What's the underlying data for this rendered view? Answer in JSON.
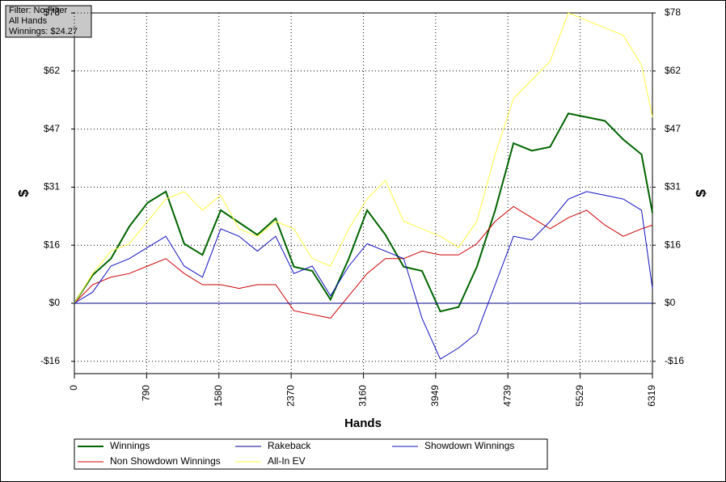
{
  "chart_data": {
    "type": "line",
    "info": [
      "Filter: No Filter",
      "All Hands",
      "Winnings: $24.27"
    ],
    "xlabel": "Hands",
    "ylabel": "$",
    "y2label": "$",
    "x": [
      0,
      200,
      400,
      600,
      800,
      1000,
      1200,
      1400,
      1600,
      1800,
      2000,
      2200,
      2400,
      2600,
      2800,
      3000,
      3200,
      3400,
      3600,
      3800,
      4000,
      4200,
      4400,
      4600,
      4800,
      5000,
      5200,
      5400,
      5600,
      5800,
      6000,
      6200,
      6319
    ],
    "xlim": [
      0,
      6319
    ],
    "xticks": [
      0,
      790,
      1580,
      2370,
      3160,
      3949,
      4739,
      5529,
      6319
    ],
    "ylim": [
      -18.9,
      78
    ],
    "yticks": [
      {
        "value": -15.6,
        "label": "-$16"
      },
      {
        "value": 0,
        "label": "$0"
      },
      {
        "value": 15.6,
        "label": "$16"
      },
      {
        "value": 31.2,
        "label": "$31"
      },
      {
        "value": 46.8,
        "label": "$47"
      },
      {
        "value": 62.4,
        "label": "$62"
      },
      {
        "value": 78,
        "label": "$78"
      }
    ],
    "grid": true,
    "series": [
      {
        "name": "Winnings",
        "color": "#006400",
        "values": [
          0,
          7.6,
          12,
          20.6,
          27,
          30,
          16,
          13,
          25,
          21.7,
          18.4,
          22.8,
          9.8,
          8.7,
          1,
          12,
          25,
          18.4,
          9.8,
          8.7,
          -2.2,
          -1,
          9.8,
          25,
          43,
          41,
          42,
          51,
          50,
          49,
          44,
          40,
          24.27
        ]
      },
      {
        "name": "Non Showdown Winnings",
        "color": "#cc0000",
        "values": [
          0,
          5,
          7,
          8,
          10,
          12,
          8,
          5,
          5,
          4,
          5,
          5,
          -2,
          -3,
          -4,
          2,
          8,
          12,
          12,
          14,
          13,
          13,
          16,
          22,
          26,
          23,
          20,
          23,
          25,
          21,
          18,
          20,
          21
        ]
      },
      {
        "name": "Rakeback",
        "color": "#00008b",
        "values": [
          0,
          0,
          0,
          0,
          0,
          0,
          0,
          0,
          0,
          0,
          0,
          0,
          0,
          0,
          0,
          0,
          0,
          0,
          0,
          0,
          0,
          0,
          0,
          0,
          0,
          0,
          0,
          0,
          0,
          0,
          0,
          0,
          0
        ]
      },
      {
        "name": "All-In EV",
        "color": "#ffff40",
        "values": [
          0,
          8,
          14,
          16,
          22,
          28,
          30,
          25,
          29,
          20,
          18,
          22,
          20,
          12,
          10,
          20,
          28,
          33,
          22,
          20,
          18,
          15,
          22,
          40,
          55,
          60,
          65,
          78,
          76,
          74,
          72,
          64,
          50
        ]
      },
      {
        "name": "Showdown Winnings",
        "color": "#1010c0",
        "values": [
          0,
          3,
          10,
          12,
          15,
          18,
          10,
          7,
          20,
          18,
          14,
          18,
          8,
          10,
          2,
          10,
          16,
          14,
          12,
          -4,
          -15,
          -12,
          -8,
          5,
          18,
          17,
          22,
          28,
          30,
          29,
          28,
          25,
          4
        ]
      }
    ]
  }
}
